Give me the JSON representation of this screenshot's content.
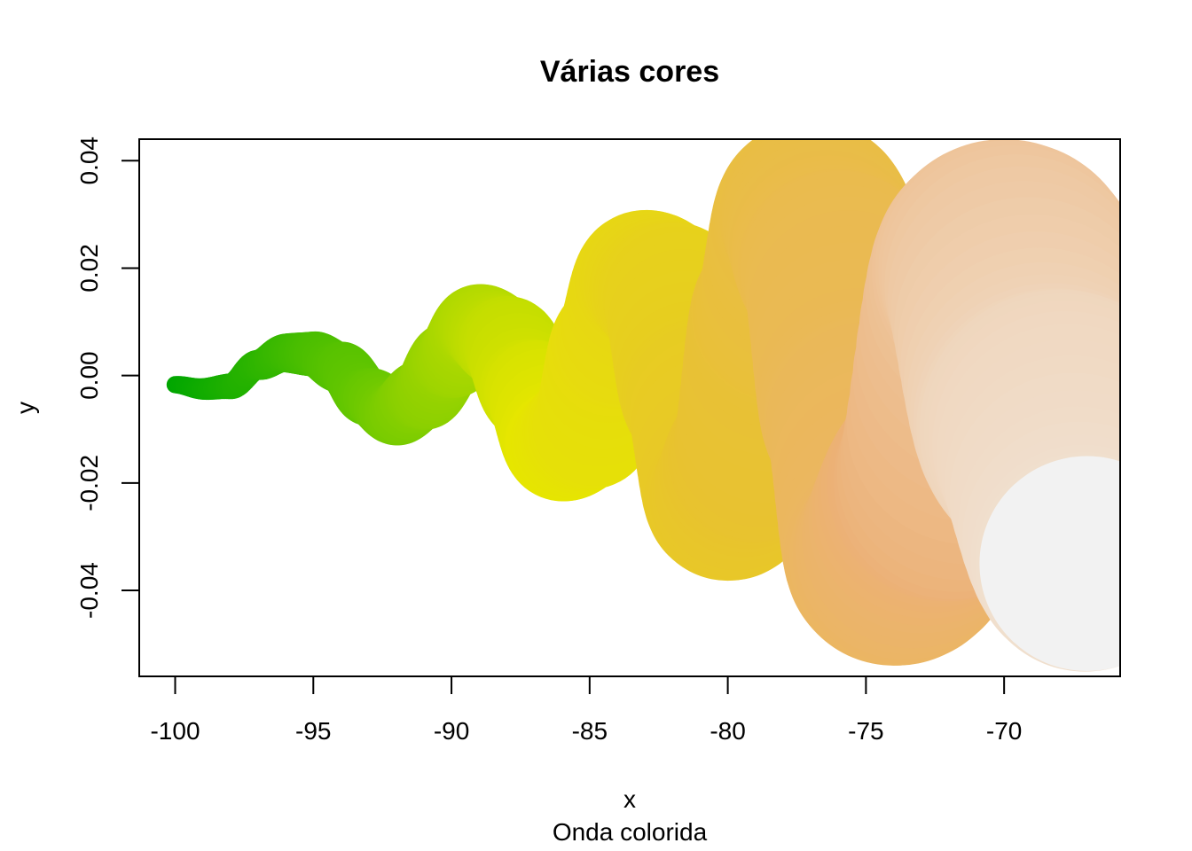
{
  "chart_data": {
    "type": "scatter",
    "title": "Várias cores",
    "xlabel": "x",
    "ylabel": "y",
    "sub": "Onda colorida",
    "xlim": [
      -101.3,
      -65.8
    ],
    "ylim": [
      -0.056,
      0.044
    ],
    "x_ticks": [
      -100,
      -95,
      -90,
      -85,
      -80,
      -75,
      -70
    ],
    "x_tick_labels": [
      "-100",
      "-95",
      "-90",
      "-85",
      "-80",
      "-75",
      "-70"
    ],
    "y_ticks": [
      -0.04,
      -0.02,
      0.0,
      0.02,
      0.04
    ],
    "y_tick_labels": [
      "-0.04",
      "-0.02",
      "0.00",
      "0.02",
      "0.04"
    ],
    "grid": false,
    "legend": "none",
    "description_series": {
      "name": "",
      "x_start": -100,
      "x_end": -65,
      "wave_amplitude_growth": "increasing",
      "color_stops": [
        "#00A600",
        "#63C600",
        "#E6E600",
        "#E8C32E",
        "#ECB176",
        "#F2F2F2"
      ]
    },
    "points": [
      {
        "x": -100.0,
        "y": -0.0017,
        "r": 0.0016
      },
      {
        "x": -99.0,
        "y": -0.0025,
        "r": 0.002
      },
      {
        "x": -98.0,
        "y": -0.002,
        "r": 0.0024
      },
      {
        "x": -97.0,
        "y": 0.002,
        "r": 0.0028
      },
      {
        "x": -96.0,
        "y": 0.0042,
        "r": 0.0036
      },
      {
        "x": -95.0,
        "y": 0.004,
        "r": 0.0042
      },
      {
        "x": -94.0,
        "y": 0.0015,
        "r": 0.0048
      },
      {
        "x": -93.0,
        "y": -0.004,
        "r": 0.0054
      },
      {
        "x": -92.0,
        "y": -0.007,
        "r": 0.006
      },
      {
        "x": -91.0,
        "y": -0.0035,
        "r": 0.0066
      },
      {
        "x": -90.0,
        "y": 0.003,
        "r": 0.0072
      },
      {
        "x": -89.0,
        "y": 0.009,
        "r": 0.008
      },
      {
        "x": -88.0,
        "y": 0.006,
        "r": 0.0088
      },
      {
        "x": -87.0,
        "y": -0.003,
        "r": 0.0096
      },
      {
        "x": -86.0,
        "y": -0.013,
        "r": 0.0104
      },
      {
        "x": -85.0,
        "y": -0.01,
        "r": 0.0112
      },
      {
        "x": -84.0,
        "y": 0.006,
        "r": 0.012
      },
      {
        "x": -83.0,
        "y": 0.018,
        "r": 0.0128
      },
      {
        "x": -82.0,
        "y": 0.015,
        "r": 0.0136
      },
      {
        "x": -81.0,
        "y": -0.004,
        "r": 0.0144
      },
      {
        "x": -80.0,
        "y": -0.023,
        "r": 0.0152
      },
      {
        "x": -79.0,
        "y": -0.015,
        "r": 0.016
      },
      {
        "x": -78.0,
        "y": 0.012,
        "r": 0.0168
      },
      {
        "x": -77.0,
        "y": 0.03,
        "r": 0.0176
      },
      {
        "x": -76.0,
        "y": 0.02,
        "r": 0.0184
      },
      {
        "x": -75.0,
        "y": -0.008,
        "r": 0.0192
      },
      {
        "x": -74.0,
        "y": -0.034,
        "r": 0.02
      },
      {
        "x": -72.0,
        "y": -0.02,
        "r": 0.022
      },
      {
        "x": -70.0,
        "y": 0.02,
        "r": 0.024
      },
      {
        "x": -68.0,
        "y": -0.01,
        "r": 0.026
      },
      {
        "x": -67.0,
        "y": -0.035,
        "r": 0.02
      }
    ]
  }
}
